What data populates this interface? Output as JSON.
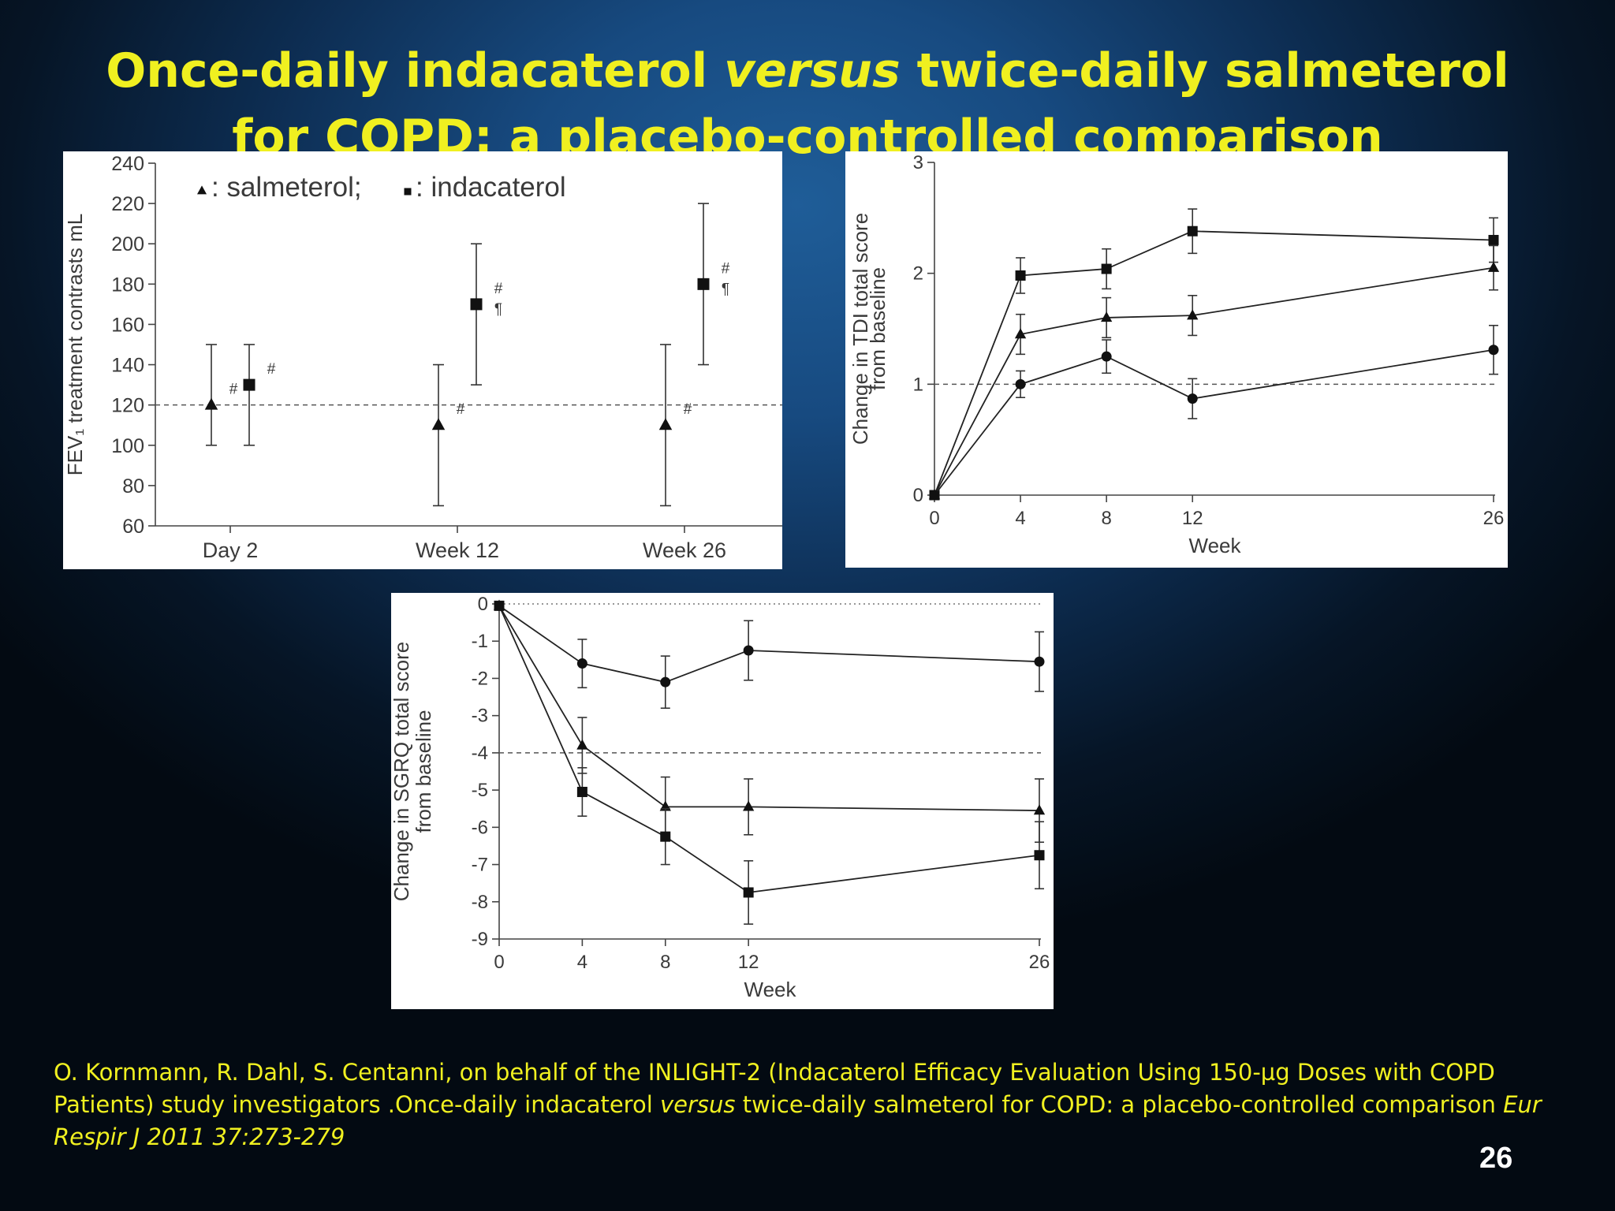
{
  "slide": {
    "title_part1": "Once-daily indacaterol ",
    "title_emph": "versus",
    "title_part2": " twice-daily salmeterol",
    "title_line2": "for COPD: a placebo-controlled comparison",
    "citation_part1": "O. Kornmann, R. Dahl, S. Centanni, on behalf of the INLIGHT-2 (Indacaterol Efficacy Evaluation Using 150-µg Doses with COPD Patients) study investigators .Once-daily indacaterol ",
    "citation_emph1": "versus",
    "citation_part2": " twice-daily salmeterol for COPD: a placebo-controlled comparison ",
    "citation_emph2": "Eur Respir J 2011 37:273-279",
    "page_number": "26",
    "text_color": "#f0f020"
  },
  "chart_data": [
    {
      "id": "fev1",
      "type": "scatter",
      "title": "",
      "ylabel": "FEV₁ treatment contrasts mL",
      "xlabel": "",
      "ylim": [
        60,
        240
      ],
      "yticks": [
        60,
        80,
        100,
        120,
        140,
        160,
        180,
        200,
        220,
        240
      ],
      "reference_line": 120,
      "legend_text": ": salmeterol; ",
      "legend_text2": ": indacaterol",
      "categories": [
        "Day 2",
        "Week 12",
        "Week 26"
      ],
      "series": [
        {
          "name": "salmeterol",
          "marker": "triangle",
          "values": [
            120,
            110,
            110
          ],
          "lower": [
            100,
            70,
            70
          ],
          "upper": [
            150,
            140,
            150
          ],
          "notes": [
            "#",
            "#",
            "#"
          ]
        },
        {
          "name": "indacaterol",
          "marker": "square",
          "values": [
            130,
            170,
            180
          ],
          "lower": [
            100,
            130,
            140
          ],
          "upper": [
            150,
            200,
            220
          ],
          "notes": [
            "#",
            "#\n¶",
            "#\n¶"
          ]
        }
      ]
    },
    {
      "id": "tdi",
      "type": "line",
      "title": "",
      "ylabel": "Change in TDI total score",
      "ylabel2": "from baseline",
      "xlabel": "Week",
      "x": [
        0,
        4,
        8,
        12,
        26
      ],
      "xticks": [
        "0",
        "4",
        "8",
        "12",
        "26"
      ],
      "ylim": [
        0,
        3
      ],
      "yticks": [
        "0",
        "1",
        "2",
        "3"
      ],
      "reference_line": 1,
      "series": [
        {
          "marker": "square",
          "values": [
            0,
            1.98,
            2.04,
            2.38,
            2.3
          ],
          "err": [
            0,
            0.16,
            0.18,
            0.2,
            0.2
          ]
        },
        {
          "marker": "triangle",
          "values": [
            0,
            1.45,
            1.6,
            1.62,
            2.05
          ],
          "err": [
            0,
            0.18,
            0.18,
            0.18,
            0.2
          ]
        },
        {
          "marker": "circle",
          "values": [
            0,
            1.0,
            1.25,
            0.87,
            1.31
          ],
          "err": [
            0,
            0.12,
            0.15,
            0.18,
            0.22
          ]
        }
      ]
    },
    {
      "id": "sgrq",
      "type": "line",
      "title": "",
      "ylabel": "Change in SGRQ total score",
      "ylabel2": "from baseline",
      "xlabel": "Week",
      "x": [
        0,
        4,
        8,
        12,
        26
      ],
      "xticks": [
        "0",
        "4",
        "8",
        "12",
        "26"
      ],
      "ylim": [
        -9,
        0
      ],
      "yticks": [
        "0",
        "-1",
        "-2",
        "-3",
        "-4",
        "-5",
        "-6",
        "-7",
        "-8",
        "-9"
      ],
      "reference_line": -4,
      "series": [
        {
          "marker": "circle",
          "values": [
            -0.05,
            -1.6,
            -2.1,
            -1.25,
            -1.55
          ],
          "err": [
            0,
            0.65,
            0.7,
            0.8,
            0.8
          ]
        },
        {
          "marker": "triangle",
          "values": [
            -0.05,
            -3.8,
            -5.45,
            -5.45,
            -5.55
          ],
          "err": [
            0,
            0.75,
            0.8,
            0.75,
            0.85
          ]
        },
        {
          "marker": "square",
          "values": [
            -0.05,
            -5.05,
            -6.25,
            -7.75,
            -6.75
          ],
          "err": [
            0,
            0.65,
            0.75,
            0.85,
            0.9
          ]
        }
      ]
    }
  ]
}
